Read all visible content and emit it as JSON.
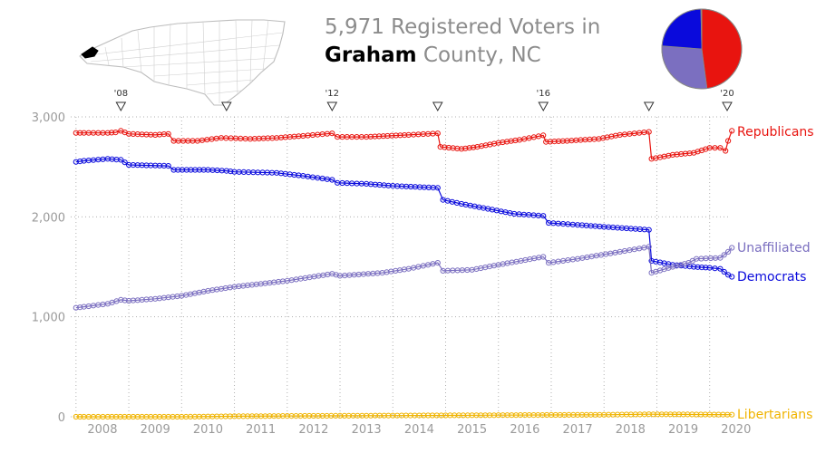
{
  "title": {
    "line1": "5,971 Registered Voters in",
    "county": "Graham",
    "rest": " County, NC"
  },
  "colors": {
    "republicans": "#e8140f",
    "democrats": "#0a0adc",
    "unaffiliated": "#7b6fc0",
    "libertarians": "#f0b400",
    "grid": "#b0b0b0",
    "axis_text": "#9a9a9a"
  },
  "icons": {
    "state_map": "north-carolina-county-map-icon",
    "election_marker": "down-triangle-icon"
  },
  "pie": {
    "slices": [
      {
        "name": "Republicans",
        "value": 2860,
        "color": "#e8140f"
      },
      {
        "name": "Unaffiliated",
        "value": 1690,
        "color": "#7b6fc0"
      },
      {
        "name": "Democrats",
        "value": 1400,
        "color": "#0a0adc"
      },
      {
        "name": "Libertarians",
        "value": 21,
        "color": "#f0b400"
      }
    ]
  },
  "chart_data": {
    "type": "line",
    "ylim": [
      0,
      3000
    ],
    "xlim": [
      2007.9,
      2020.4
    ],
    "y_ticks": [
      {
        "value": 0,
        "label": "0"
      },
      {
        "value": 1000,
        "label": "1,000"
      },
      {
        "value": 2000,
        "label": "2,000"
      },
      {
        "value": 3000,
        "label": "3,000"
      }
    ],
    "x_ticks": [
      "2008",
      "2009",
      "2010",
      "2011",
      "2012",
      "2013",
      "2014",
      "2015",
      "2016",
      "2017",
      "2018",
      "2019",
      "2020"
    ],
    "elections": [
      {
        "year": 2008.85,
        "label": "'08"
      },
      {
        "year": 2010.85,
        "label": ""
      },
      {
        "year": 2012.85,
        "label": "'12"
      },
      {
        "year": 2014.85,
        "label": ""
      },
      {
        "year": 2016.85,
        "label": "'16"
      },
      {
        "year": 2018.85,
        "label": ""
      },
      {
        "year": 2020.85,
        "label": "'20"
      }
    ],
    "grid": true,
    "series": [
      {
        "name": "Republicans",
        "color": "#e8140f",
        "points": [
          [
            2008.0,
            2840
          ],
          [
            2008.15,
            2840
          ],
          [
            2008.6,
            2840
          ],
          [
            2008.75,
            2845
          ],
          [
            2008.85,
            2860
          ],
          [
            2009.0,
            2830
          ],
          [
            2009.5,
            2820
          ],
          [
            2009.75,
            2830
          ],
          [
            2009.85,
            2760
          ],
          [
            2010.3,
            2760
          ],
          [
            2010.75,
            2790
          ],
          [
            2011.3,
            2780
          ],
          [
            2011.8,
            2790
          ],
          [
            2012.3,
            2810
          ],
          [
            2012.85,
            2835
          ],
          [
            2012.95,
            2800
          ],
          [
            2013.5,
            2800
          ],
          [
            2013.9,
            2810
          ],
          [
            2014.3,
            2820
          ],
          [
            2014.85,
            2835
          ],
          [
            2014.9,
            2700
          ],
          [
            2015.3,
            2680
          ],
          [
            2015.6,
            2700
          ],
          [
            2016.0,
            2740
          ],
          [
            2016.4,
            2770
          ],
          [
            2016.85,
            2815
          ],
          [
            2016.9,
            2750
          ],
          [
            2017.3,
            2760
          ],
          [
            2017.9,
            2780
          ],
          [
            2018.3,
            2820
          ],
          [
            2018.85,
            2850
          ],
          [
            2018.9,
            2580
          ],
          [
            2019.3,
            2620
          ],
          [
            2019.7,
            2640
          ],
          [
            2020.0,
            2690
          ],
          [
            2020.2,
            2690
          ],
          [
            2020.3,
            2660
          ],
          [
            2020.35,
            2760
          ],
          [
            2020.42,
            2860
          ]
        ]
      },
      {
        "name": "Democrats",
        "color": "#0a0adc",
        "points": [
          [
            2008.0,
            2550
          ],
          [
            2008.15,
            2560
          ],
          [
            2008.6,
            2580
          ],
          [
            2008.85,
            2570
          ],
          [
            2009.0,
            2520
          ],
          [
            2009.75,
            2510
          ],
          [
            2009.85,
            2470
          ],
          [
            2010.5,
            2470
          ],
          [
            2010.85,
            2460
          ],
          [
            2011.0,
            2450
          ],
          [
            2011.8,
            2440
          ],
          [
            2012.3,
            2410
          ],
          [
            2012.85,
            2370
          ],
          [
            2012.95,
            2340
          ],
          [
            2013.5,
            2330
          ],
          [
            2014.0,
            2310
          ],
          [
            2014.85,
            2290
          ],
          [
            2014.95,
            2170
          ],
          [
            2015.3,
            2130
          ],
          [
            2015.8,
            2080
          ],
          [
            2016.3,
            2030
          ],
          [
            2016.85,
            2010
          ],
          [
            2016.95,
            1940
          ],
          [
            2017.5,
            1920
          ],
          [
            2018.0,
            1900
          ],
          [
            2018.85,
            1870
          ],
          [
            2018.9,
            1560
          ],
          [
            2019.3,
            1520
          ],
          [
            2019.7,
            1500
          ],
          [
            2020.0,
            1490
          ],
          [
            2020.2,
            1480
          ],
          [
            2020.35,
            1420
          ],
          [
            2020.42,
            1400
          ]
        ]
      },
      {
        "name": "Unaffiliated",
        "color": "#7b6fc0",
        "points": [
          [
            2008.0,
            1090
          ],
          [
            2008.15,
            1100
          ],
          [
            2008.6,
            1130
          ],
          [
            2008.85,
            1170
          ],
          [
            2009.0,
            1160
          ],
          [
            2009.5,
            1180
          ],
          [
            2010.0,
            1210
          ],
          [
            2010.5,
            1260
          ],
          [
            2011.0,
            1300
          ],
          [
            2011.5,
            1330
          ],
          [
            2012.0,
            1360
          ],
          [
            2012.85,
            1430
          ],
          [
            2013.0,
            1410
          ],
          [
            2013.8,
            1440
          ],
          [
            2014.3,
            1480
          ],
          [
            2014.85,
            1540
          ],
          [
            2014.95,
            1460
          ],
          [
            2015.5,
            1470
          ],
          [
            2016.0,
            1520
          ],
          [
            2016.85,
            1600
          ],
          [
            2016.95,
            1540
          ],
          [
            2017.5,
            1580
          ],
          [
            2018.3,
            1650
          ],
          [
            2018.85,
            1700
          ],
          [
            2018.9,
            1440
          ],
          [
            2019.3,
            1500
          ],
          [
            2019.6,
            1540
          ],
          [
            2019.75,
            1580
          ],
          [
            2020.2,
            1590
          ],
          [
            2020.35,
            1650
          ],
          [
            2020.42,
            1690
          ]
        ]
      },
      {
        "name": "Libertarians",
        "color": "#f0b400",
        "points": [
          [
            2008.0,
            0
          ],
          [
            2008.15,
            0
          ],
          [
            2008.6,
            0
          ],
          [
            2009.0,
            0
          ],
          [
            2010.0,
            0
          ],
          [
            2011.0,
            5
          ],
          [
            2012.0,
            8
          ],
          [
            2013.0,
            10
          ],
          [
            2014.0,
            12
          ],
          [
            2015.0,
            14
          ],
          [
            2016.0,
            16
          ],
          [
            2017.0,
            18
          ],
          [
            2018.0,
            20
          ],
          [
            2018.85,
            25
          ],
          [
            2019.5,
            24
          ],
          [
            2020.0,
            22
          ],
          [
            2020.42,
            21
          ]
        ]
      }
    ],
    "labels": [
      {
        "series": "Republicans",
        "text": "Republicans",
        "value": 2860
      },
      {
        "series": "Unaffiliated",
        "text": "Unaffiliated",
        "value": 1690
      },
      {
        "series": "Democrats",
        "text": "Democrats",
        "value": 1400
      },
      {
        "series": "Libertarians",
        "text": "Libertarians",
        "value": 21
      }
    ]
  }
}
